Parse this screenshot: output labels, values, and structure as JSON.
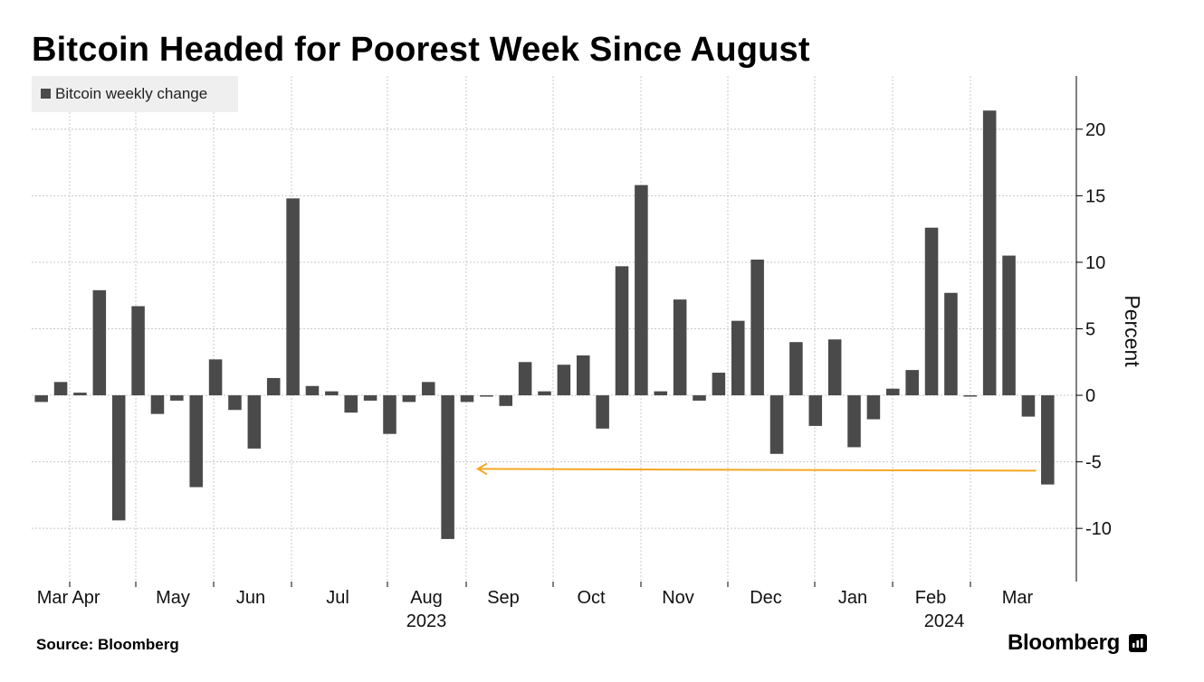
{
  "title": "Bitcoin Headed for Poorest Week Since August",
  "source": "Source: Bloomberg",
  "brand": "Bloomberg",
  "colors": {
    "bar": "#4a4a4a",
    "arrow": "#f5a623",
    "grid": "#c8c8c8"
  },
  "chart_data": {
    "type": "bar",
    "legend": [
      "Bitcoin weekly change"
    ],
    "legend_position": "top-left",
    "ylabel": "Percent",
    "ylim": [
      -14,
      24
    ],
    "yticks": [
      20,
      15,
      10,
      5,
      0,
      -5,
      -10
    ],
    "grid": true,
    "x_tick_labels": [
      "Mar",
      "Apr",
      "May",
      "Jun",
      "Jul",
      "Aug",
      "Sep",
      "Oct",
      "Nov",
      "Dec",
      "Jan",
      "Feb",
      "Mar"
    ],
    "year_labels": [
      "2023",
      "2024"
    ],
    "series": [
      {
        "name": "Bitcoin weekly change",
        "values": [
          -0.5,
          1.0,
          0.2,
          7.9,
          -9.4,
          6.7,
          -1.4,
          -0.4,
          -6.9,
          2.7,
          -1.1,
          -4.0,
          1.3,
          14.8,
          0.7,
          0.3,
          -1.3,
          -0.4,
          -2.9,
          -0.5,
          1.0,
          -10.8,
          -0.5,
          -0.1,
          -0.8,
          2.5,
          0.3,
          2.3,
          3.0,
          -2.5,
          9.7,
          15.8,
          0.3,
          7.2,
          -0.4,
          1.7,
          5.6,
          10.2,
          -4.4,
          4.0,
          -2.3,
          4.2,
          -3.9,
          -1.8,
          0.5,
          1.9,
          12.6,
          7.7,
          -0.1,
          21.4,
          10.5,
          -1.6,
          -6.7
        ]
      }
    ],
    "annotation": {
      "type": "arrow",
      "from_week_index": 52,
      "to_week_index": 22,
      "y": -5.6
    }
  }
}
